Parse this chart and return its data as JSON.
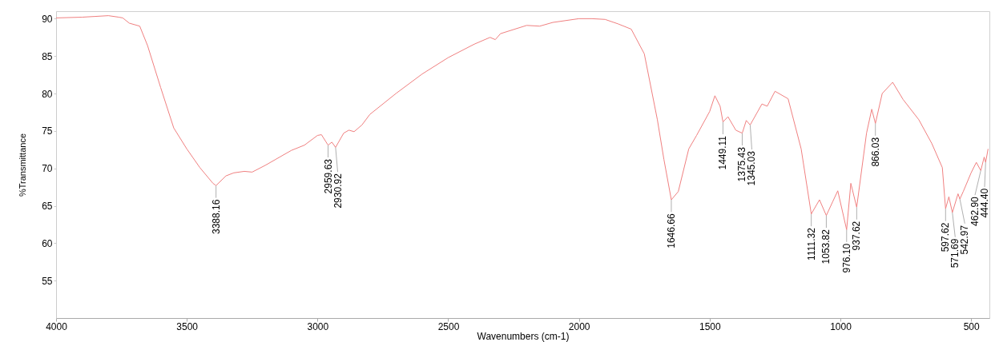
{
  "chart_data": {
    "type": "line",
    "xlabel": "Wavenumbers (cm-1)",
    "ylabel": "%Transmittance",
    "xlim": [
      4000,
      430
    ],
    "ylim": [
      50,
      91
    ],
    "xticks": [
      4000,
      3500,
      3000,
      2500,
      2000,
      1500,
      1000,
      500
    ],
    "yticks": [
      55,
      60,
      65,
      70,
      75,
      80,
      85,
      90
    ],
    "grid": false,
    "marker": "none",
    "line_style": "solid",
    "series": [
      {
        "color": "#f08080",
        "x": [
          4000,
          3900,
          3850,
          3800,
          3760,
          3745,
          3720,
          3680,
          3650,
          3600,
          3550,
          3500,
          3450,
          3400,
          3388.16,
          3350,
          3320,
          3280,
          3250,
          3200,
          3100,
          3050,
          3000,
          2985,
          2959.63,
          2945,
          2930.92,
          2900,
          2880,
          2860,
          2830,
          2800,
          2700,
          2600,
          2500,
          2400,
          2340,
          2320,
          2300,
          2200,
          2150,
          2100,
          2000,
          1950,
          1900,
          1850,
          1800,
          1750,
          1700,
          1675,
          1646.66,
          1620,
          1580,
          1550,
          1500,
          1480,
          1460,
          1449.11,
          1430,
          1400,
          1375.43,
          1360,
          1345.03,
          1300,
          1280,
          1250,
          1200,
          1150,
          1111.32,
          1080,
          1053.82,
          1030,
          1010,
          976.1,
          960,
          937.62,
          900,
          880,
          866.03,
          840,
          800,
          760,
          700,
          650,
          610,
          597.62,
          585,
          571.69,
          550,
          542.97,
          530,
          500,
          480,
          462.9,
          450,
          444.4,
          435
        ],
        "values": [
          90.1,
          90.2,
          90.3,
          90.4,
          90.2,
          90.1,
          89.4,
          89,
          86.4,
          80.8,
          75.4,
          72.6,
          70.1,
          68,
          67.7,
          69,
          69.4,
          69.6,
          69.5,
          70.4,
          72.4,
          73.1,
          74.4,
          74.5,
          73.1,
          73.5,
          72.8,
          74.7,
          75.1,
          74.9,
          75.8,
          77.2,
          80,
          82.6,
          84.8,
          86.6,
          87.5,
          87.2,
          88,
          89.1,
          89,
          89.5,
          90,
          90,
          89.9,
          89.3,
          88.6,
          85.3,
          76.5,
          71.2,
          65.8,
          66.9,
          72.6,
          74.4,
          77.6,
          79.7,
          78.3,
          76.2,
          76.9,
          75.1,
          74.7,
          76.4,
          75.8,
          78.6,
          78.3,
          80.3,
          79.3,
          72.6,
          63.9,
          65.8,
          63.7,
          65.5,
          67,
          61.8,
          68,
          64.8,
          74.7,
          77.9,
          76,
          80,
          81.5,
          79.2,
          76.5,
          73.3,
          70.1,
          64.6,
          66.2,
          64.1,
          66.6,
          65.9,
          66.9,
          69.4,
          70.8,
          69.7,
          71.5,
          70.8,
          72.6
        ]
      }
    ],
    "annotations": [
      {
        "text": "3388.16",
        "x": 3388.16,
        "y": 67.7
      },
      {
        "text": "2959.63",
        "x": 2959.63,
        "y": 73.1
      },
      {
        "text": "2930.92",
        "x": 2930.92,
        "y": 72.8
      },
      {
        "text": "1646.66",
        "x": 1646.66,
        "y": 65.8
      },
      {
        "text": "1449.11",
        "x": 1449.11,
        "y": 76.2
      },
      {
        "text": "1375.43",
        "x": 1375.43,
        "y": 74.7
      },
      {
        "text": "1345.03",
        "x": 1345.03,
        "y": 75.8
      },
      {
        "text": "1111.32",
        "x": 1111.32,
        "y": 63.9
      },
      {
        "text": "1053.82",
        "x": 1053.82,
        "y": 63.7
      },
      {
        "text": "976.10",
        "x": 976.1,
        "y": 61.8
      },
      {
        "text": "937.62",
        "x": 937.62,
        "y": 64.8
      },
      {
        "text": "866.03",
        "x": 866.03,
        "y": 76
      },
      {
        "text": "597.62",
        "x": 597.62,
        "y": 64.6
      },
      {
        "text": "571.69",
        "x": 571.69,
        "y": 64.1
      },
      {
        "text": "542.97",
        "x": 542.97,
        "y": 65.9
      },
      {
        "text": "462.90",
        "x": 462.9,
        "y": 69.7
      },
      {
        "text": "444.40",
        "x": 444.4,
        "y": 70.8
      }
    ]
  }
}
